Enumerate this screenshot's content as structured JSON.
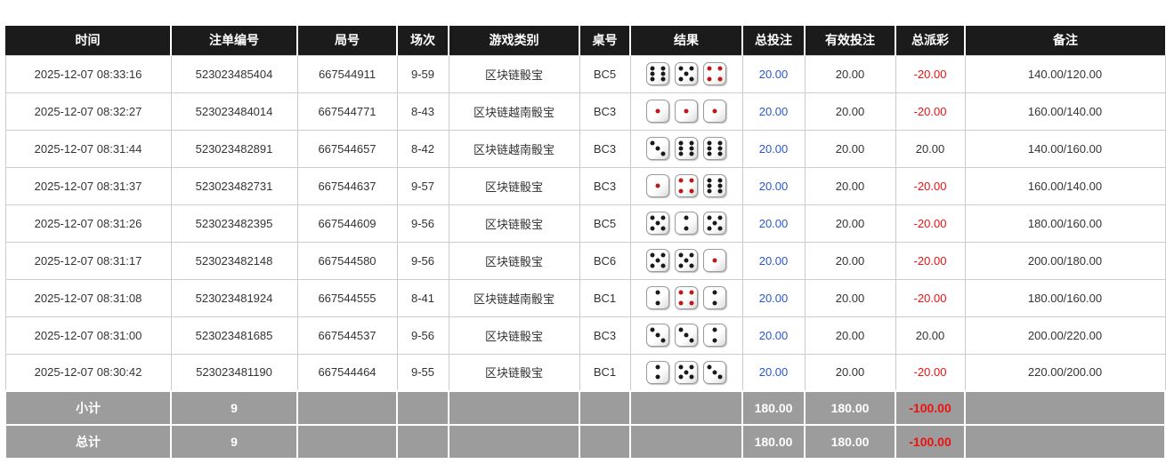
{
  "colors": {
    "header_bg": "#1b1b1b",
    "header_text": "#ffffff",
    "summary_bg": "#9c9c9c",
    "border": "#cccccc",
    "bet_blue": "#2a57cc",
    "negative_red": "#ee1111",
    "pip_black": "#1a1a1a",
    "pip_red": "#c01818"
  },
  "table": {
    "columns": [
      {
        "key": "time",
        "label": "时间"
      },
      {
        "key": "bet_id",
        "label": "注单编号"
      },
      {
        "key": "round_id",
        "label": "局号"
      },
      {
        "key": "session",
        "label": "场次"
      },
      {
        "key": "game_type",
        "label": "游戏类别"
      },
      {
        "key": "table_no",
        "label": "桌号"
      },
      {
        "key": "result",
        "label": "结果"
      },
      {
        "key": "total_bet",
        "label": "总投注"
      },
      {
        "key": "valid_bet",
        "label": "有效投注"
      },
      {
        "key": "total_payout",
        "label": "总派彩"
      },
      {
        "key": "remark",
        "label": "备注"
      }
    ],
    "rows": [
      {
        "time": "2025-12-07 08:33:16",
        "bet_id": "523023485404",
        "round_id": "667544911",
        "session": "9-59",
        "game_type": "区块链骰宝",
        "table_no": "BC5",
        "dice": [
          6,
          5,
          4
        ],
        "total_bet": "20.00",
        "valid_bet": "20.00",
        "total_payout": "-20.00",
        "remark": "140.00/120.00"
      },
      {
        "time": "2025-12-07 08:32:27",
        "bet_id": "523023484014",
        "round_id": "667544771",
        "session": "8-43",
        "game_type": "区块链越南骰宝",
        "table_no": "BC3",
        "dice": [
          1,
          1,
          1
        ],
        "total_bet": "20.00",
        "valid_bet": "20.00",
        "total_payout": "-20.00",
        "remark": "160.00/140.00"
      },
      {
        "time": "2025-12-07 08:31:44",
        "bet_id": "523023482891",
        "round_id": "667544657",
        "session": "8-42",
        "game_type": "区块链越南骰宝",
        "table_no": "BC3",
        "dice": [
          3,
          6,
          6
        ],
        "total_bet": "20.00",
        "valid_bet": "20.00",
        "total_payout": "20.00",
        "remark": "140.00/160.00"
      },
      {
        "time": "2025-12-07 08:31:37",
        "bet_id": "523023482731",
        "round_id": "667544637",
        "session": "9-57",
        "game_type": "区块链骰宝",
        "table_no": "BC3",
        "dice": [
          1,
          4,
          6
        ],
        "total_bet": "20.00",
        "valid_bet": "20.00",
        "total_payout": "-20.00",
        "remark": "160.00/140.00"
      },
      {
        "time": "2025-12-07 08:31:26",
        "bet_id": "523023482395",
        "round_id": "667544609",
        "session": "9-56",
        "game_type": "区块链骰宝",
        "table_no": "BC5",
        "dice": [
          5,
          2,
          5
        ],
        "total_bet": "20.00",
        "valid_bet": "20.00",
        "total_payout": "-20.00",
        "remark": "180.00/160.00"
      },
      {
        "time": "2025-12-07 08:31:17",
        "bet_id": "523023482148",
        "round_id": "667544580",
        "session": "9-56",
        "game_type": "区块链骰宝",
        "table_no": "BC6",
        "dice": [
          5,
          5,
          1
        ],
        "total_bet": "20.00",
        "valid_bet": "20.00",
        "total_payout": "-20.00",
        "remark": "200.00/180.00"
      },
      {
        "time": "2025-12-07 08:31:08",
        "bet_id": "523023481924",
        "round_id": "667544555",
        "session": "8-41",
        "game_type": "区块链越南骰宝",
        "table_no": "BC1",
        "dice": [
          2,
          4,
          2
        ],
        "total_bet": "20.00",
        "valid_bet": "20.00",
        "total_payout": "-20.00",
        "remark": "180.00/160.00"
      },
      {
        "time": "2025-12-07 08:31:00",
        "bet_id": "523023481685",
        "round_id": "667544537",
        "session": "9-56",
        "game_type": "区块链骰宝",
        "table_no": "BC3",
        "dice": [
          3,
          3,
          2
        ],
        "total_bet": "20.00",
        "valid_bet": "20.00",
        "total_payout": "20.00",
        "remark": "200.00/220.00"
      },
      {
        "time": "2025-12-07 08:30:42",
        "bet_id": "523023481190",
        "round_id": "667544464",
        "session": "9-55",
        "game_type": "区块链骰宝",
        "table_no": "BC1",
        "dice": [
          2,
          5,
          3
        ],
        "total_bet": "20.00",
        "valid_bet": "20.00",
        "total_payout": "-20.00",
        "remark": "220.00/200.00"
      }
    ],
    "summary": [
      {
        "key": "subtotal",
        "label": "小计",
        "count": "9",
        "total_bet": "180.00",
        "valid_bet": "180.00",
        "total_payout": "-100.00"
      },
      {
        "key": "grand_total",
        "label": "总计",
        "count": "9",
        "total_bet": "180.00",
        "valid_bet": "180.00",
        "total_payout": "-100.00"
      }
    ]
  }
}
